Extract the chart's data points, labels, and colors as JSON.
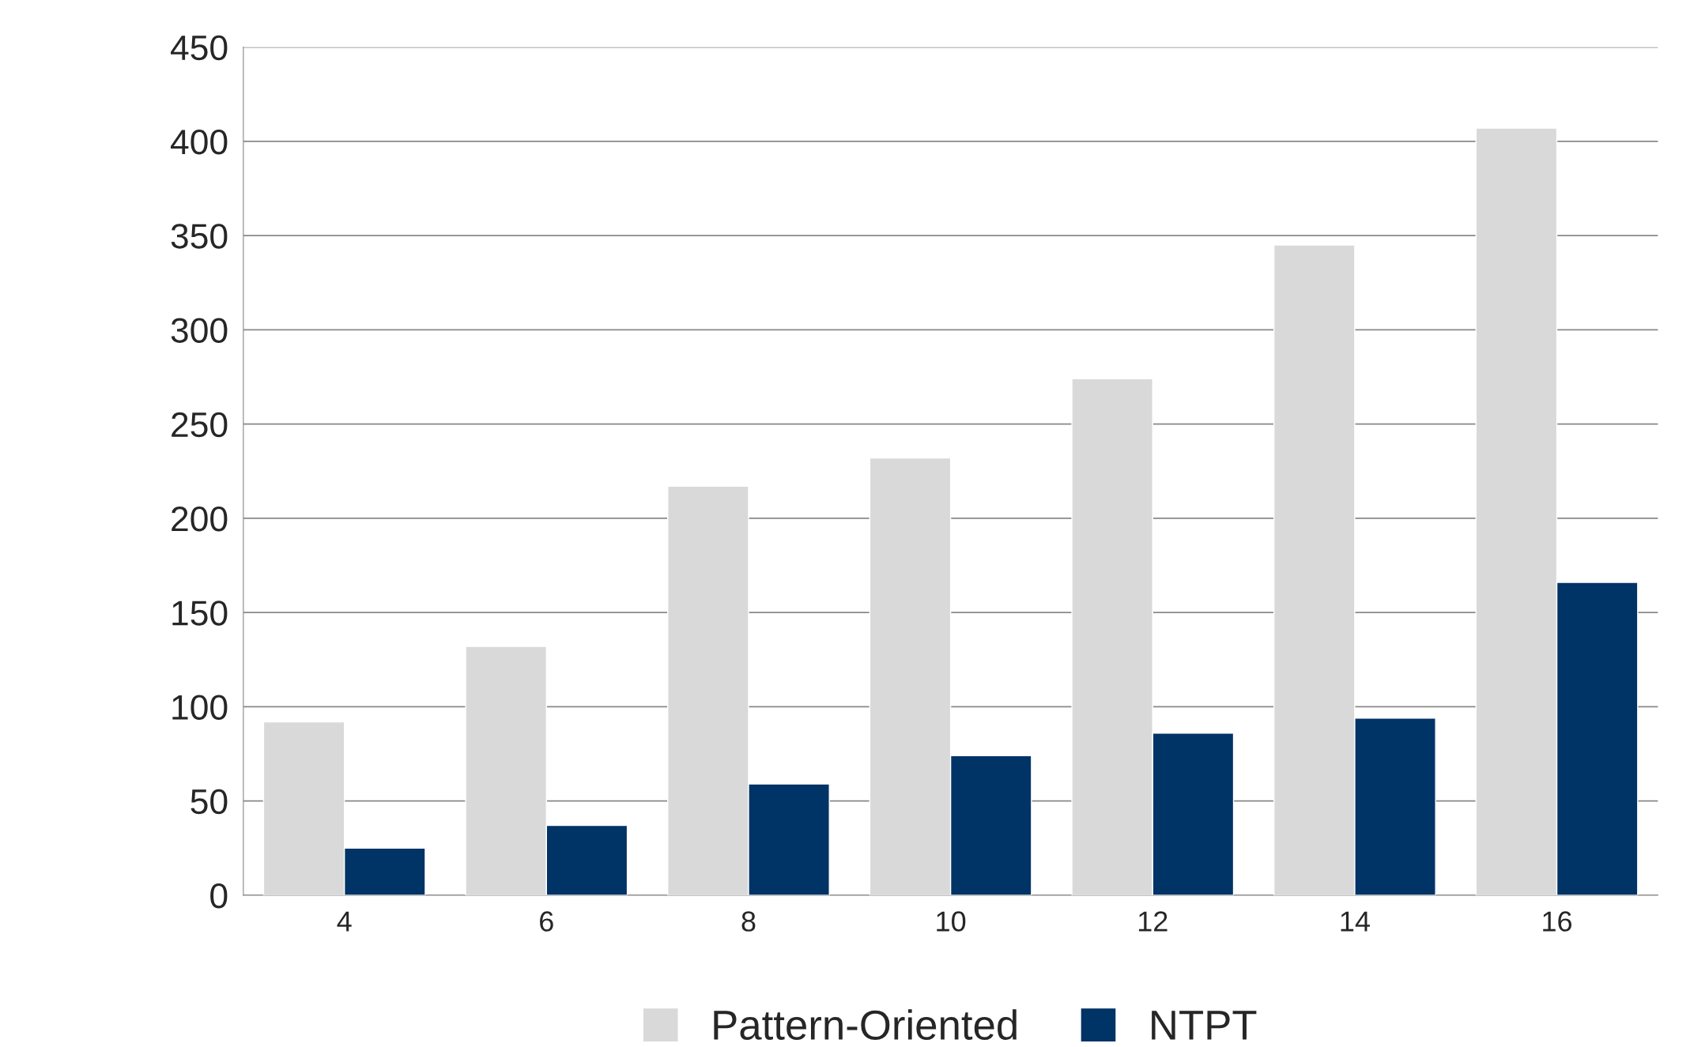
{
  "chart_data": {
    "type": "bar",
    "categories": [
      "4",
      "6",
      "8",
      "10",
      "12",
      "14",
      "16"
    ],
    "series": [
      {
        "name": "Pattern-Oriented",
        "color": "#d9d9d9",
        "values": [
          92,
          132,
          217,
          232,
          274,
          345,
          407
        ]
      },
      {
        "name": "NTPT",
        "color": "#003366",
        "values": [
          25,
          37,
          59,
          74,
          86,
          94,
          166
        ]
      }
    ],
    "ylim": [
      0,
      450
    ],
    "yticks": [
      0,
      50,
      100,
      150,
      200,
      250,
      300,
      350,
      400,
      450
    ],
    "grid": "y",
    "legend": "bottom"
  }
}
